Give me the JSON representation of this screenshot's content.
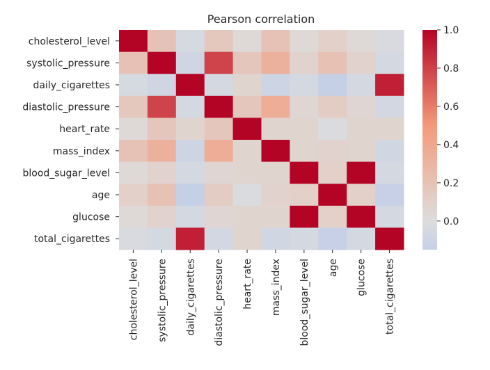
{
  "chart_data": {
    "type": "heatmap",
    "title": "Pearson correlation",
    "xlabel": "",
    "ylabel": "",
    "colormap": "coolwarm",
    "colormap_center": 0,
    "rows": [
      "cholesterol_level",
      "systolic_pressure",
      "daily_cigarettes",
      "diastolic_pressure",
      "heart_rate",
      "mass_index",
      "blood_sugar_level",
      "age",
      "glucose",
      "total_cigarettes"
    ],
    "columns": [
      "cholesterol_level",
      "systolic_pressure",
      "daily_cigarettes",
      "diastolic_pressure",
      "heart_rate",
      "mass_index",
      "blood_sugar_level",
      "age",
      "glucose",
      "total_cigarettes"
    ],
    "values": [
      [
        1.0,
        0.2,
        -0.05,
        0.16,
        0.03,
        0.2,
        0.03,
        0.1,
        0.03,
        -0.03
      ],
      [
        0.2,
        1.0,
        -0.09,
        0.79,
        0.17,
        0.33,
        0.08,
        0.21,
        0.08,
        -0.06
      ],
      [
        -0.05,
        -0.09,
        1.0,
        -0.06,
        0.07,
        -0.1,
        -0.06,
        -0.15,
        -0.06,
        0.91
      ],
      [
        0.16,
        0.79,
        -0.06,
        1.0,
        0.17,
        0.36,
        0.05,
        0.13,
        0.05,
        -0.07
      ],
      [
        0.03,
        0.17,
        0.07,
        0.17,
        1.0,
        0.07,
        0.07,
        -0.02,
        0.07,
        0.07
      ],
      [
        0.2,
        0.33,
        -0.1,
        0.36,
        0.07,
        1.0,
        0.07,
        0.08,
        0.07,
        -0.08
      ],
      [
        0.03,
        0.08,
        -0.06,
        0.05,
        0.07,
        0.07,
        1.0,
        0.1,
        1.0,
        -0.06
      ],
      [
        0.1,
        0.21,
        -0.15,
        0.13,
        -0.02,
        0.08,
        0.1,
        1.0,
        0.1,
        -0.14
      ],
      [
        0.03,
        0.08,
        -0.06,
        0.05,
        0.07,
        0.07,
        1.0,
        0.1,
        1.0,
        -0.06
      ],
      [
        -0.03,
        -0.06,
        0.91,
        -0.07,
        0.07,
        -0.08,
        -0.06,
        -0.14,
        -0.06,
        1.0
      ]
    ],
    "vmin": -0.15,
    "vmax": 1.0,
    "colorbar": {
      "ticks": [
        0.0,
        0.2,
        0.4,
        0.6,
        0.8,
        1.0
      ],
      "tick_labels": [
        "0.0",
        "0.2",
        "0.4",
        "0.6",
        "0.8",
        "1.0"
      ]
    },
    "grid": false,
    "legend": "colorbar-right"
  }
}
